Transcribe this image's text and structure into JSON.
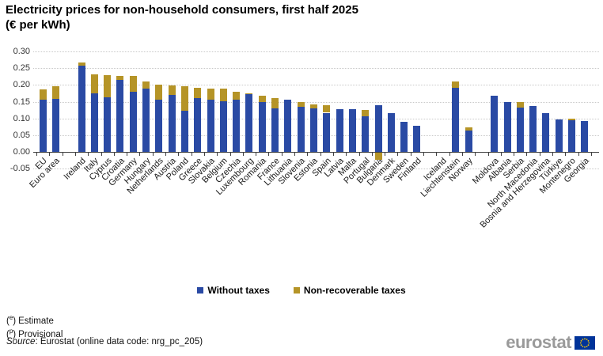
{
  "title": "Electricity prices for non-household consumers, first half 2025",
  "subtitle": "(€ per kWh)",
  "legend": [
    {
      "label": "Without taxes",
      "color": "#2a4aa4"
    },
    {
      "label": "Non-recoverable taxes",
      "color": "#b59427"
    }
  ],
  "footnotes": [
    {
      "open": "(",
      "sup": "e",
      "close": ")",
      "label": "Estimate"
    },
    {
      "open": "(",
      "sup": "p",
      "close": ")",
      "label": "Provisional"
    }
  ],
  "source": {
    "prefix": "Source",
    "rest": ": Eurostat (online data code: nrg_pc_205)"
  },
  "logo": {
    "text": "eurostat"
  },
  "chart_data": {
    "type": "bar",
    "stacked": true,
    "title": "Electricity prices for non-household consumers, first half 2025",
    "subtitle": "(€ per kWh)",
    "ylabel": "€ per kWh",
    "xlabel": "",
    "ylim": [
      -0.05,
      0.3
    ],
    "y_ticks": [
      "0.30",
      "0.25",
      "0.20",
      "0.15",
      "0.10",
      "0.05",
      "0.00",
      "-0.05"
    ],
    "grid": "dotted horizontal",
    "legend_position": "bottom center",
    "series_names": [
      "Without taxes",
      "Non-recoverable taxes"
    ],
    "colors": {
      "without_taxes": "#2a4aa4",
      "non_recoverable_taxes": "#b59427"
    },
    "note": "bars stacked: without = price without taxes, tax = non-recoverable taxes; Bulgaria tax is negative; Iceland has no data",
    "groups": [
      [
        {
          "label": "EU",
          "without": 0.155,
          "tax": 0.032
        },
        {
          "label": "Euro area",
          "without": 0.159,
          "tax": 0.036
        }
      ],
      [
        {
          "label": "Ireland",
          "without": 0.258,
          "tax": 0.01
        },
        {
          "label": "Italy",
          "without": 0.174,
          "tax": 0.058
        },
        {
          "label": "Cyprus",
          "without": 0.162,
          "tax": 0.068
        },
        {
          "label": "Croatia",
          "without": 0.214,
          "tax": 0.014
        },
        {
          "label": "Germany",
          "without": 0.18,
          "tax": 0.046
        },
        {
          "label": "Hungary",
          "without": 0.19,
          "tax": 0.021
        },
        {
          "label": "Netherlands",
          "without": 0.156,
          "tax": 0.045
        },
        {
          "label": "Austria",
          "without": 0.171,
          "tax": 0.027
        },
        {
          "label": "Poland",
          "without": 0.122,
          "tax": 0.074
        },
        {
          "label": "Greece",
          "without": 0.161,
          "tax": 0.03
        },
        {
          "label": "Slovakia",
          "without": 0.157,
          "tax": 0.033
        },
        {
          "label": "Belgium",
          "without": 0.151,
          "tax": 0.037
        },
        {
          "label": "Czechia",
          "without": 0.156,
          "tax": 0.023
        },
        {
          "label": "Luxembourg",
          "without": 0.172,
          "tax": 0.004
        },
        {
          "label": "Romania",
          "without": 0.148,
          "tax": 0.019
        },
        {
          "label": "France",
          "without": 0.13,
          "tax": 0.031
        },
        {
          "label": "Lithuania",
          "without": 0.155,
          "tax": 0.0
        },
        {
          "label": "Slovenia",
          "without": 0.134,
          "tax": 0.015
        },
        {
          "label": "Estonia",
          "without": 0.129,
          "tax": 0.012
        },
        {
          "label": "Spain",
          "without": 0.117,
          "tax": 0.022
        },
        {
          "label": "Latvia",
          "without": 0.128,
          "tax": 0.0
        },
        {
          "label": "Malta",
          "without": 0.127,
          "tax": 0.0
        },
        {
          "label": "Portugal",
          "without": 0.107,
          "tax": 0.019
        },
        {
          "label": "Bulgaria",
          "without": 0.139,
          "tax": -0.022
        },
        {
          "label": "Denmark",
          "without": 0.115,
          "tax": 0.0
        },
        {
          "label": "Sweden",
          "without": 0.089,
          "tax": 0.0
        },
        {
          "label": "Finland",
          "without": 0.078,
          "tax": 0.0
        }
      ],
      [
        {
          "label": "Iceland",
          "without": null,
          "tax": null
        },
        {
          "label": "Liechtenstein",
          "without": 0.192,
          "tax": 0.018
        },
        {
          "label": "Norway",
          "without": 0.064,
          "tax": 0.01
        }
      ],
      [
        {
          "label": "Moldova",
          "without": 0.168,
          "tax": 0.0
        },
        {
          "label": "Albania",
          "without": 0.15,
          "tax": 0.0
        },
        {
          "label": "Serbia",
          "without": 0.132,
          "tax": 0.017
        },
        {
          "label": "North Macedonia",
          "without": 0.136,
          "tax": 0.0
        },
        {
          "label": "Bosnia and Herzegovina",
          "without": 0.116,
          "tax": 0.0
        },
        {
          "label": "Türkiye",
          "without": 0.096,
          "tax": 0.0
        },
        {
          "label": "Montenegro",
          "without": 0.094,
          "tax": 0.006
        },
        {
          "label": "Georgia",
          "without": 0.093,
          "tax": 0.0
        }
      ]
    ]
  }
}
